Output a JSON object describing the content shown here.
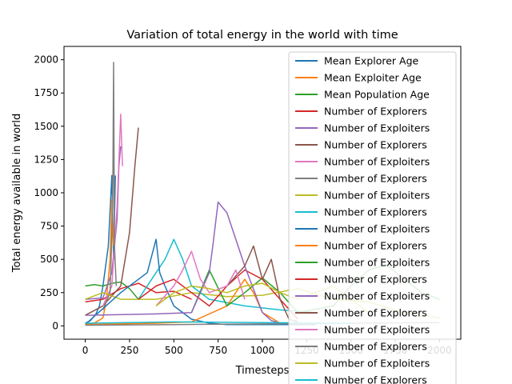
{
  "chart_data": {
    "type": "line",
    "title": "Variation of total energy in the world with time",
    "xlabel": "Timesteps",
    "ylabel": "Total energy available in world",
    "xlim": [
      -120,
      2120
    ],
    "ylim": [
      -100,
      2100
    ],
    "x_ticks": [
      0,
      250,
      500,
      750,
      1000,
      1250,
      1500,
      1750,
      2000
    ],
    "y_ticks": [
      0,
      250,
      500,
      750,
      1000,
      1250,
      1500,
      1750,
      2000
    ],
    "grid": false,
    "legend_position": "top-right",
    "series": [
      {
        "name": "Mean Explorer Age",
        "color": "#1f77b4",
        "x": [
          0,
          30,
          60,
          80,
          100,
          130,
          150,
          160,
          170
        ],
        "y": [
          20,
          40,
          90,
          150,
          300,
          600,
          1130,
          500,
          1130
        ]
      },
      {
        "name": "Mean Exploiter Age",
        "color": "#ff7f0e",
        "x": [
          0,
          50,
          100,
          120,
          140,
          150,
          160
        ],
        "y": [
          10,
          20,
          60,
          200,
          500,
          950,
          600
        ]
      },
      {
        "name": "Mean Population Age",
        "color": "#2ca02c",
        "x": [
          0,
          50,
          100,
          150,
          200,
          250,
          300
        ],
        "y": [
          300,
          310,
          300,
          320,
          330,
          280,
          200
        ]
      },
      {
        "name": "Number of Explorers",
        "color": "#d62728",
        "x": [
          0,
          100,
          200,
          300,
          400,
          500,
          600
        ],
        "y": [
          180,
          200,
          280,
          320,
          250,
          260,
          200
        ]
      },
      {
        "name": "Number of Exploiters",
        "color": "#9467bd",
        "x": [
          0,
          100,
          150,
          180,
          190,
          200
        ],
        "y": [
          200,
          210,
          400,
          800,
          1200,
          1350
        ]
      },
      {
        "name": "Number of Explorers",
        "color": "#8c564b",
        "x": [
          0,
          100,
          200,
          250,
          280,
          300
        ],
        "y": [
          80,
          150,
          300,
          700,
          1200,
          1490
        ]
      },
      {
        "name": "Number of Exploiters",
        "color": "#e377c2",
        "x": [
          100,
          150,
          180,
          200,
          210
        ],
        "y": [
          150,
          300,
          900,
          1590,
          1200
        ]
      },
      {
        "name": "Number of Explorers",
        "color": "#7f7f7f",
        "x": [
          100,
          140,
          155,
          160,
          165,
          175
        ],
        "y": [
          120,
          250,
          900,
          1980,
          600,
          300
        ]
      },
      {
        "name": "Number of Exploiters",
        "color": "#bcbd22",
        "x": [
          0,
          100,
          200,
          400,
          600,
          800,
          1000,
          1200,
          1400,
          1600,
          1800,
          2000
        ],
        "y": [
          200,
          250,
          200,
          200,
          250,
          220,
          230,
          280,
          200,
          180,
          100,
          60
        ]
      },
      {
        "name": "Number of Explorers",
        "color": "#17becf",
        "x": [
          300,
          400,
          450,
          500,
          550,
          600,
          700,
          900,
          1100,
          1300
        ],
        "y": [
          200,
          400,
          500,
          650,
          500,
          300,
          200,
          150,
          120,
          100
        ]
      },
      {
        "name": "Number of Exploiters",
        "color": "#1f77b4",
        "x": [
          0,
          200,
          350,
          400,
          420,
          450,
          500,
          600,
          700,
          800,
          1000,
          1200,
          1300
        ],
        "y": [
          10,
          250,
          400,
          650,
          400,
          300,
          150,
          50,
          20,
          10,
          10,
          10,
          10
        ]
      },
      {
        "name": "Number of Explorers",
        "color": "#ff7f0e",
        "x": [
          0,
          200,
          400,
          600,
          800,
          900,
          950,
          1000,
          1100
        ],
        "y": [
          10,
          15,
          20,
          30,
          150,
          350,
          250,
          100,
          20
        ]
      },
      {
        "name": "Number of Exploiters",
        "color": "#2ca02c",
        "x": [
          600,
          700,
          800,
          900,
          1000,
          1100,
          1200,
          1400,
          1500,
          1600,
          1700,
          1800,
          1900,
          2000
        ],
        "y": [
          100,
          420,
          150,
          250,
          360,
          250,
          100,
          150,
          300,
          420,
          460,
          350,
          250,
          200
        ]
      },
      {
        "name": "Number of Explorers",
        "color": "#d62728",
        "x": [
          300,
          400,
          500,
          600,
          700,
          800,
          900,
          1000,
          1100,
          1200
        ],
        "y": [
          200,
          300,
          350,
          250,
          150,
          300,
          420,
          350,
          200,
          50
        ]
      },
      {
        "name": "Number of Exploiters",
        "color": "#9467bd",
        "x": [
          0,
          400,
          600,
          700,
          720,
          750,
          800,
          850,
          900,
          1000,
          1050,
          1100
        ],
        "y": [
          80,
          90,
          100,
          400,
          600,
          930,
          850,
          650,
          450,
          100,
          40,
          20
        ]
      },
      {
        "name": "Number of Explorers",
        "color": "#8c564b",
        "x": [
          800,
          900,
          950,
          1000,
          1050,
          1100,
          1150,
          1200
        ],
        "y": [
          300,
          450,
          600,
          350,
          500,
          200,
          50,
          30
        ]
      },
      {
        "name": "Number of Exploiters",
        "color": "#e377c2",
        "x": [
          400,
          500,
          550,
          600,
          650,
          700,
          800,
          850,
          900
        ],
        "y": [
          150,
          300,
          420,
          560,
          350,
          250,
          300,
          420,
          200
        ]
      },
      {
        "name": "Number of Explorers",
        "color": "#7f7f7f",
        "x": [
          0,
          500,
          1000,
          1500,
          2000
        ],
        "y": [
          5,
          10,
          15,
          20,
          25
        ]
      },
      {
        "name": "Number of Exploiters",
        "color": "#bcbd22",
        "x": [
          400,
          500,
          600,
          700,
          800,
          900,
          1000,
          1100,
          1200,
          1300,
          1400,
          1500,
          1600
        ],
        "y": [
          150,
          250,
          300,
          280,
          250,
          300,
          320,
          250,
          200,
          250,
          300,
          200,
          100
        ]
      },
      {
        "name": "Number of Explorers",
        "color": "#17becf",
        "x": [
          0,
          500,
          1000,
          1500
        ],
        "y": [
          20,
          30,
          25,
          20
        ]
      }
    ]
  }
}
